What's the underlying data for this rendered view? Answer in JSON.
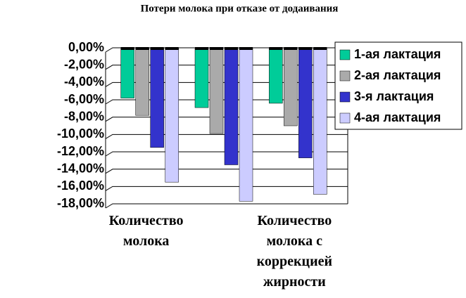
{
  "chart_data": {
    "type": "bar",
    "title": "Потери молока при отказе от додаивания",
    "categories": [
      "Количество молока",
      null,
      "Количество молока с коррекцией жирности"
    ],
    "series": [
      {
        "name": "1-ая лактация",
        "color": "#00cc99",
        "values": [
          -5.8,
          -6.9,
          -6.4
        ]
      },
      {
        "name": "2-ая лактация",
        "color": "#aaaaaa",
        "values": [
          -7.8,
          -9.9,
          -9.0
        ]
      },
      {
        "name": "3-я лактация",
        "color": "#3333cc",
        "values": [
          -11.5,
          -13.5,
          -12.7
        ]
      },
      {
        "name": "4-ая лактация",
        "color": "#ccccff",
        "values": [
          -15.5,
          -17.7,
          -16.9
        ]
      }
    ],
    "ylim": [
      0,
      -18
    ],
    "yticks": [
      {
        "value": 0,
        "label": "0,00%"
      },
      {
        "value": -2,
        "label": "-2,00%"
      },
      {
        "value": -4,
        "label": "-4,00%"
      },
      {
        "value": -6,
        "label": "-6,00%"
      },
      {
        "value": -8,
        "label": "-8,00%"
      },
      {
        "value": -10,
        "label": "-10,00%"
      },
      {
        "value": -12,
        "label": "-12,00%"
      },
      {
        "value": -14,
        "label": "-14,00%"
      },
      {
        "value": -16,
        "label": "-16,00%"
      },
      {
        "value": -18,
        "label": "-18,00%"
      }
    ],
    "grid": true,
    "legend": "right"
  }
}
